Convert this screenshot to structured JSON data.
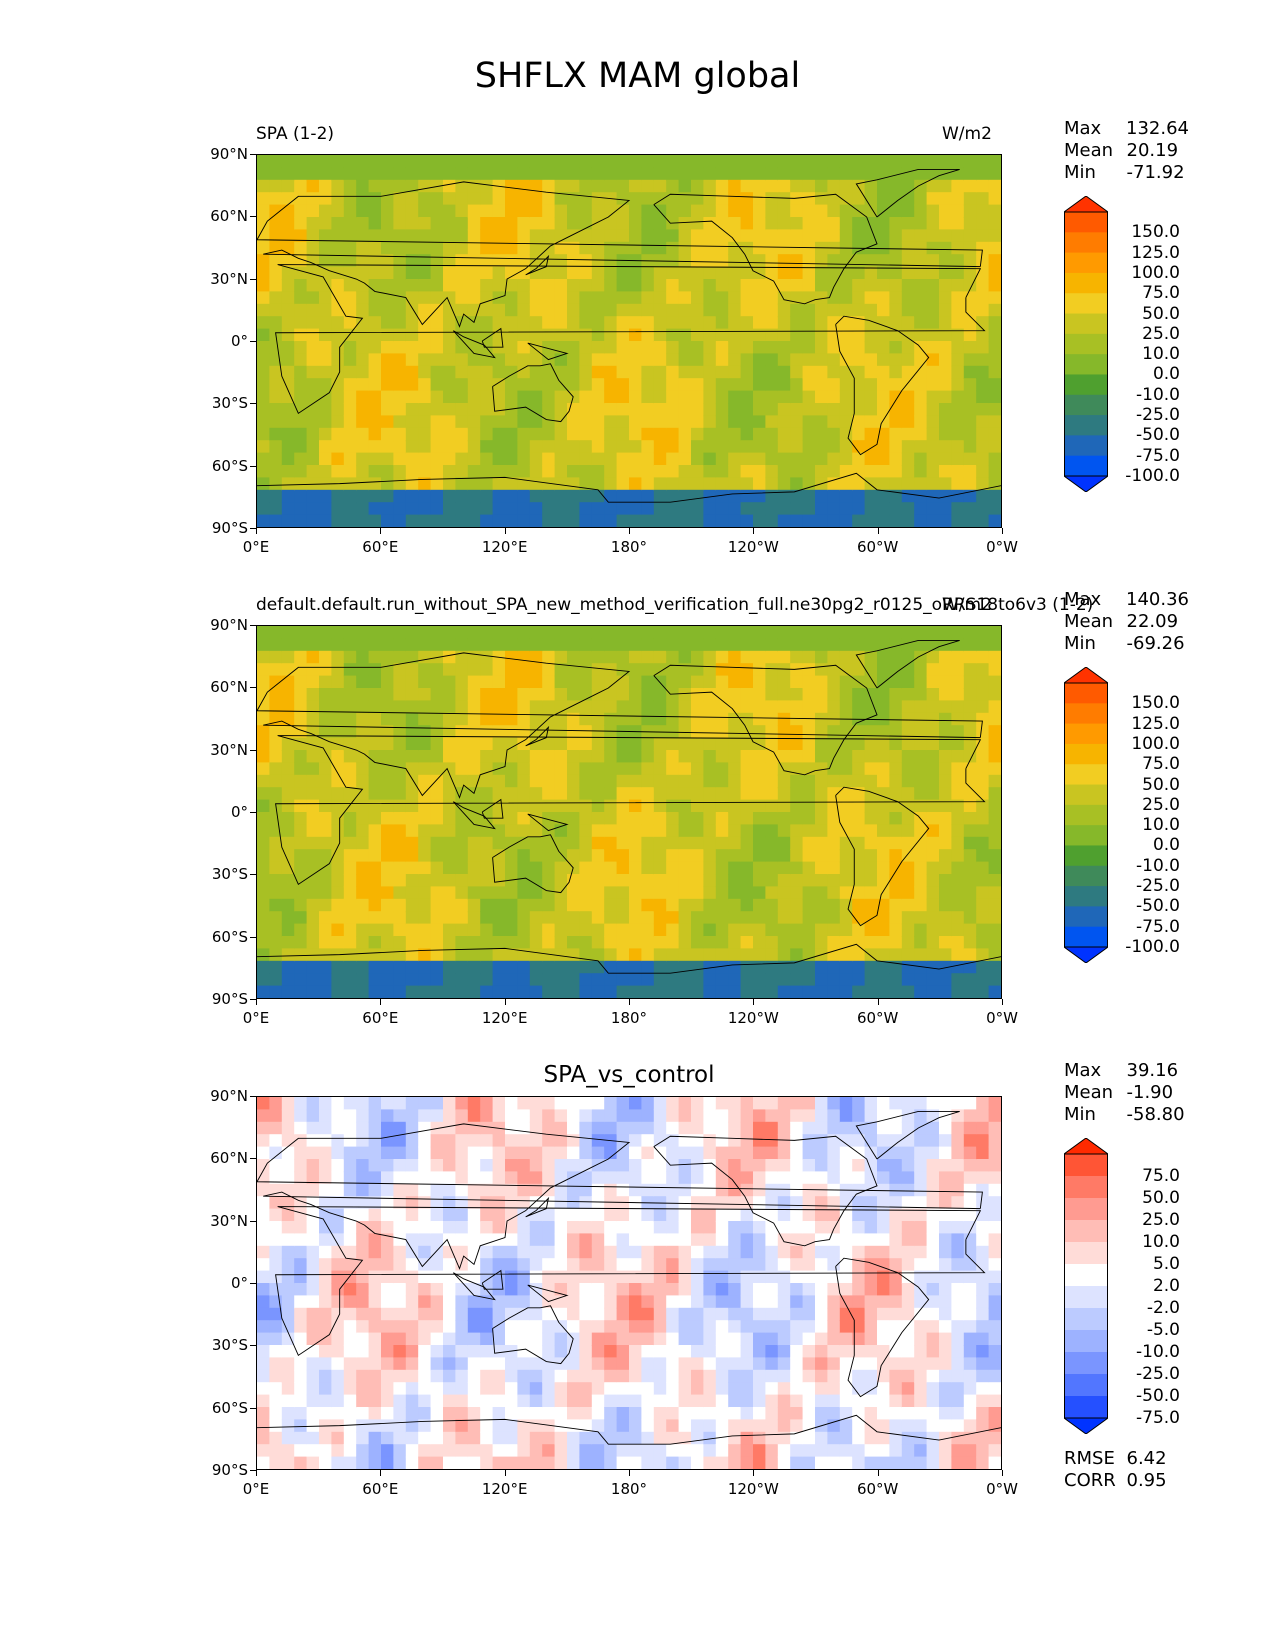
{
  "figure_title": "SHFLX MAM global",
  "latitude_ticks": [
    "90°N",
    "60°N",
    "30°N",
    "0°",
    "30°S",
    "60°S",
    "90°S"
  ],
  "longitude_ticks": [
    "0°E",
    "60°E",
    "120°E",
    "180°",
    "120°W",
    "60°W",
    "0°W"
  ],
  "panels": [
    {
      "left_title": "SPA (1-2)",
      "center_title": "",
      "right_title": "W/m2",
      "stats": {
        "max_label": "Max",
        "max": "132.64",
        "mean_label": "Mean",
        "mean": "20.19",
        "min_label": "Min",
        "min": "-71.92"
      },
      "colorbar_levels": [
        "150.0",
        "125.0",
        "100.0",
        "75.0",
        "50.0",
        "25.0",
        "10.0",
        "0.0",
        "-10.0",
        "-25.0",
        "-50.0",
        "-75.0",
        "-100.0"
      ],
      "colorbar_colors": [
        "#ff3300",
        "#ff5a00",
        "#ff7c00",
        "#ff9a00",
        "#f7b400",
        "#f2cd22",
        "#c9c521",
        "#a8c024",
        "#86b82a",
        "#4fa02f",
        "#3f8a5a",
        "#2e7a80",
        "#1f67b8",
        "#0055f0",
        "#0033ff"
      ],
      "field_style": "absolute"
    },
    {
      "left_title": "default.default.run_without_SPA_new_method_verification_full.ne30pg2_r0125_oRRS18to6v3 (1-2)",
      "center_title": "",
      "right_title": "W/m2",
      "stats": {
        "max_label": "Max",
        "max": "140.36",
        "mean_label": "Mean",
        "mean": "22.09",
        "min_label": "Min",
        "min": "-69.26"
      },
      "colorbar_levels": [
        "150.0",
        "125.0",
        "100.0",
        "75.0",
        "50.0",
        "25.0",
        "10.0",
        "0.0",
        "-10.0",
        "-25.0",
        "-50.0",
        "-75.0",
        "-100.0"
      ],
      "colorbar_colors": [
        "#ff3300",
        "#ff5a00",
        "#ff7c00",
        "#ff9a00",
        "#f7b400",
        "#f2cd22",
        "#c9c521",
        "#a8c024",
        "#86b82a",
        "#4fa02f",
        "#3f8a5a",
        "#2e7a80",
        "#1f67b8",
        "#0055f0",
        "#0033ff"
      ],
      "field_style": "absolute"
    },
    {
      "left_title": "",
      "center_title": "SPA_vs_control",
      "right_title": "",
      "stats": {
        "max_label": "Max",
        "max": "39.16",
        "mean_label": "Mean",
        "mean": "-1.90",
        "min_label": "Min",
        "min": "-58.80"
      },
      "colorbar_levels": [
        "75.0",
        "50.0",
        "25.0",
        "10.0",
        "5.0",
        "2.0",
        "-2.0",
        "-5.0",
        "-10.0",
        "-25.0",
        "-50.0",
        "-75.0"
      ],
      "colorbar_colors": [
        "#ff2a00",
        "#ff5535",
        "#ff7a66",
        "#ff9b91",
        "#ffbdb6",
        "#ffdcd8",
        "#ffffff",
        "#dde3ff",
        "#bccbff",
        "#9db2ff",
        "#7a95ff",
        "#5276ff",
        "#2550ff",
        "#0033ff"
      ],
      "field_style": "difference",
      "bottom_stats": {
        "rmse_label": "RMSE",
        "rmse": "6.42",
        "corr_label": "CORR",
        "corr": "0.95"
      }
    }
  ]
}
